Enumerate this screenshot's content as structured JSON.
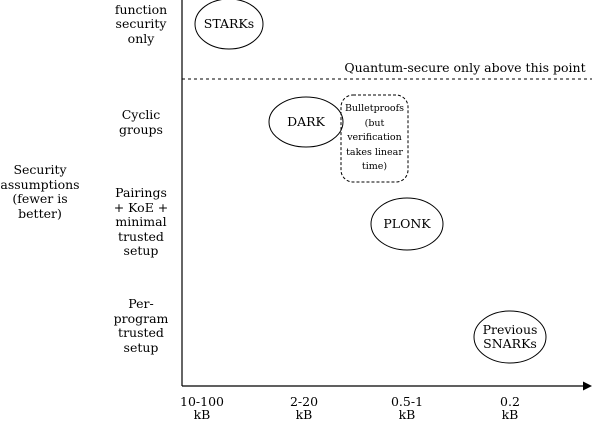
{
  "y_axis_title": "Security\nassumptions\n(fewer is\nbetter)",
  "rows": [
    {
      "label": "Hash\nfunction\nsecurity\nonly"
    },
    {
      "label": "Cyclic\ngroups"
    },
    {
      "label": "Pairings\n+ KoE +\nminimal\ntrusted\nsetup"
    },
    {
      "label": "Per-\nprogram\ntrusted\nsetup"
    }
  ],
  "columns": [
    {
      "label": "10-100\nkB"
    },
    {
      "label": "2-20\nkB"
    },
    {
      "label": "0.5-1\nkB"
    },
    {
      "label": "0.2\nkB"
    }
  ],
  "threshold_note": "Quantum-secure only above this point",
  "nodes": [
    {
      "label": "STARKs"
    },
    {
      "label": "DARK"
    },
    {
      "label": "Bulletproofs\n(but\nverification\ntakes linear\ntime)"
    },
    {
      "label": "PLONK"
    },
    {
      "label": "Previous\nSNARKs"
    }
  ]
}
